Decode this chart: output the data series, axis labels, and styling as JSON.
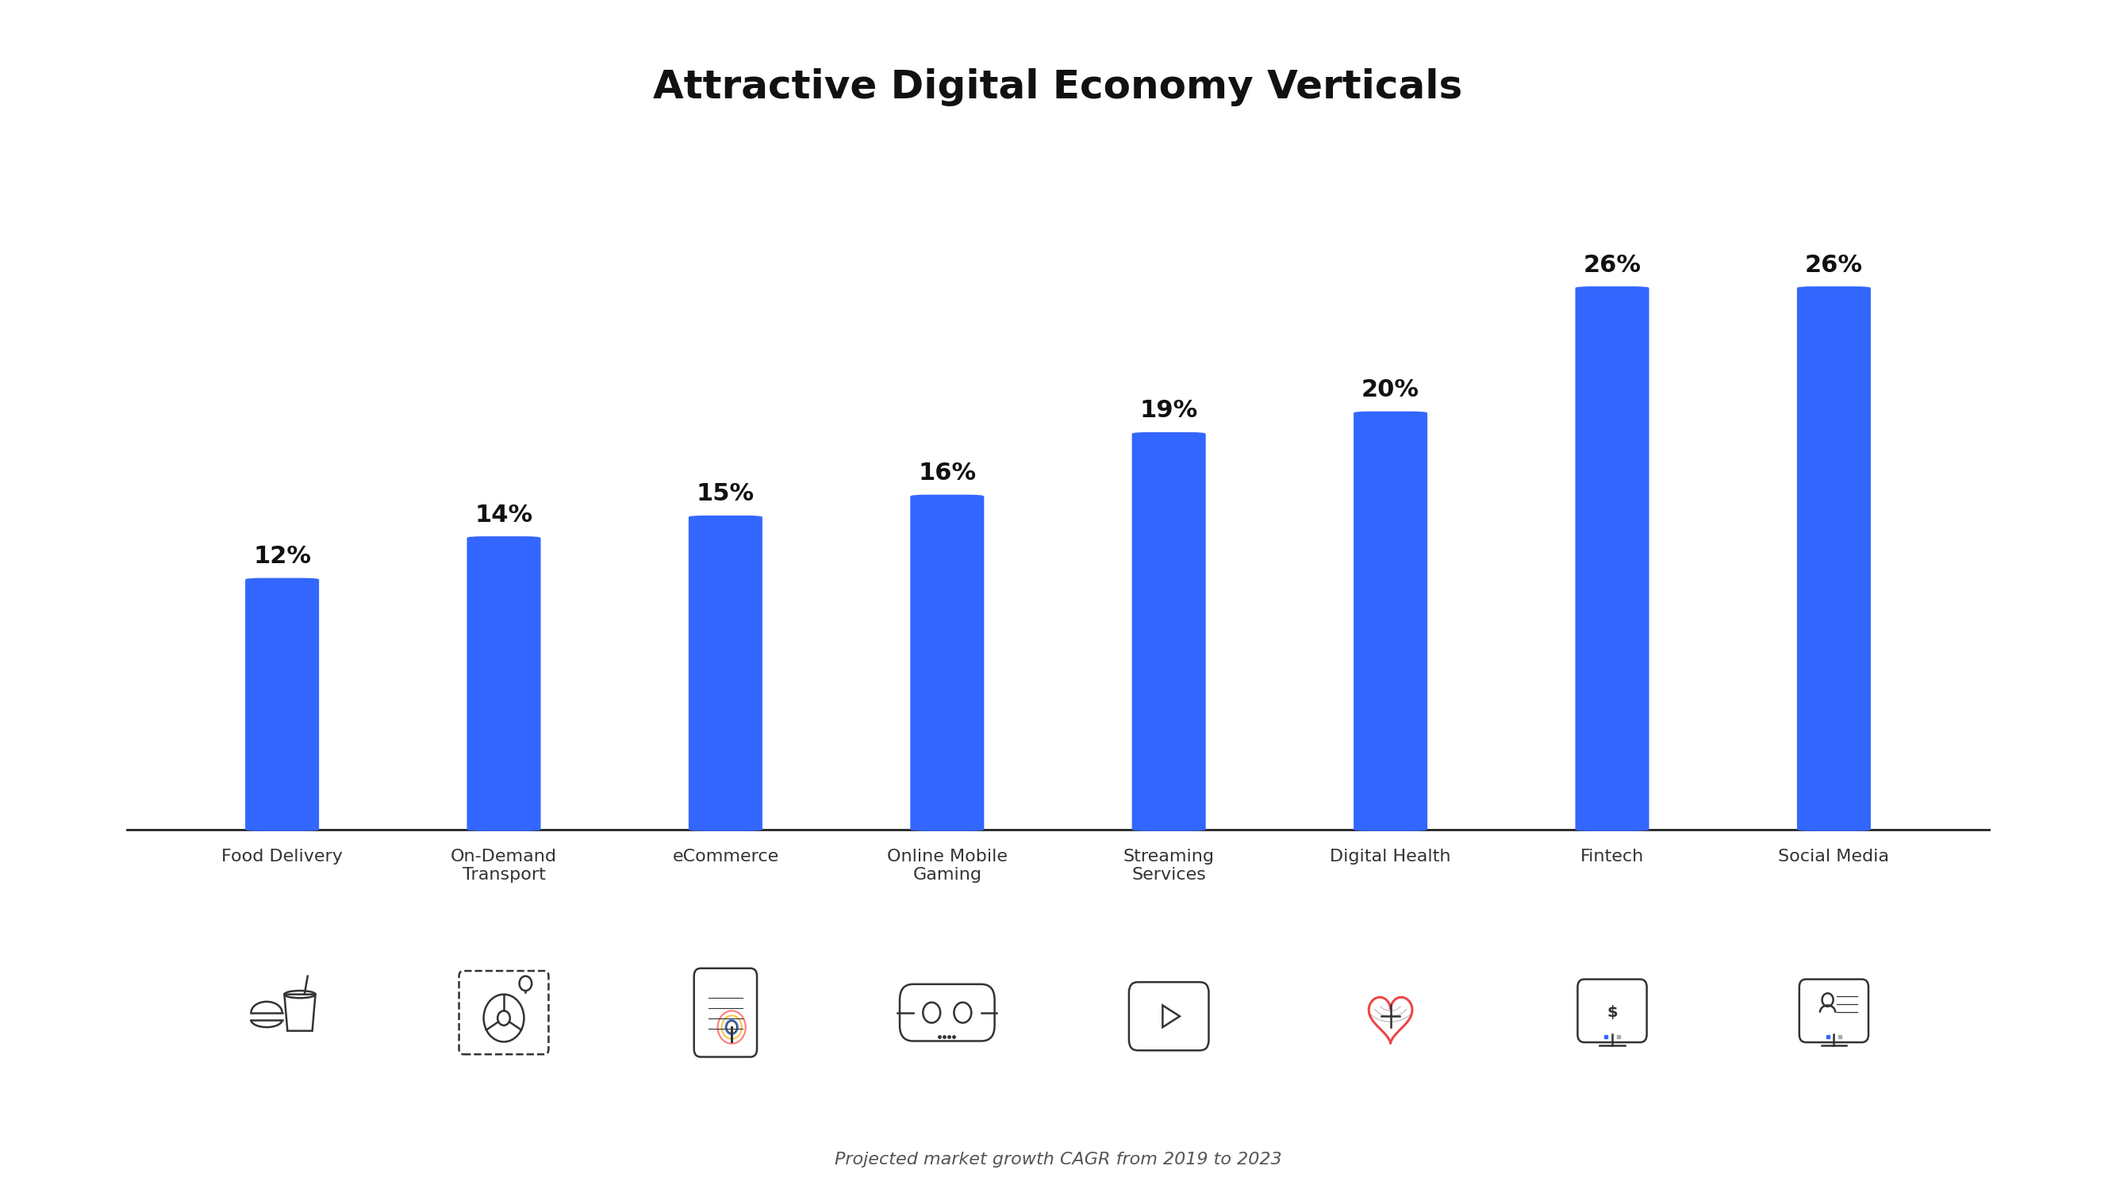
{
  "title": "Attractive Digital Economy Verticals",
  "subtitle": "Projected market growth CAGR from 2019 to 2023",
  "categories": [
    "Food Delivery",
    "On-Demand\nTransport",
    "eCommerce",
    "Online Mobile\nGaming",
    "Streaming\nServices",
    "Digital Health",
    "Fintech",
    "Social Media"
  ],
  "values": [
    12,
    14,
    15,
    16,
    19,
    20,
    26,
    26
  ],
  "labels": [
    "12%",
    "14%",
    "15%",
    "16%",
    "19%",
    "20%",
    "26%",
    "26%"
  ],
  "bar_color": "#3366FF",
  "background_color": "#FFFFFF",
  "title_fontsize": 36,
  "subtitle_fontsize": 16,
  "label_fontsize": 22,
  "category_fontsize": 16,
  "bar_width": 0.18,
  "ylim": [
    0,
    33
  ],
  "title_color": "#111111",
  "label_color": "#111111",
  "category_color": "#333333",
  "subtitle_color": "#555555"
}
